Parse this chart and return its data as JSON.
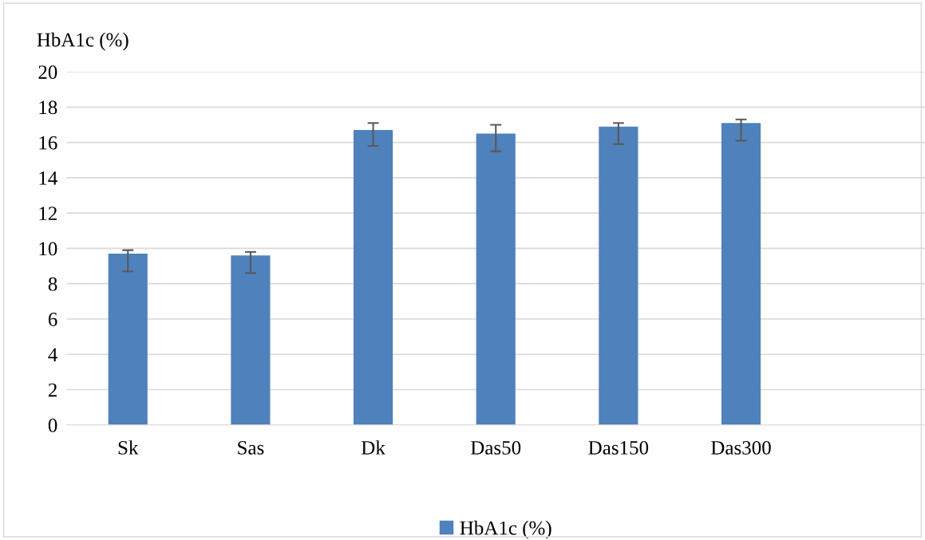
{
  "chart_data": {
    "type": "bar",
    "ylabel": "HbA1c (%)",
    "categories": [
      "Sk",
      "Sas",
      "Dk",
      "Das50",
      "Das150",
      "Das300",
      null
    ],
    "series": [
      {
        "name": "HbA1c (%)",
        "color": "#4f81bd",
        "values": [
          9.7,
          9.6,
          16.7,
          16.5,
          16.9,
          17.1,
          null
        ],
        "errors": [
          [
            8.7,
            9.9
          ],
          [
            8.6,
            9.8
          ],
          [
            15.8,
            17.1
          ],
          [
            15.5,
            17.0
          ],
          [
            15.9,
            17.1
          ],
          [
            16.1,
            17.3
          ],
          null
        ]
      }
    ],
    "ylim": [
      0,
      20
    ],
    "yticks": [
      0,
      2,
      4,
      6,
      8,
      10,
      12,
      14,
      16,
      18,
      20
    ],
    "grid": "y",
    "legend": "bottom"
  }
}
